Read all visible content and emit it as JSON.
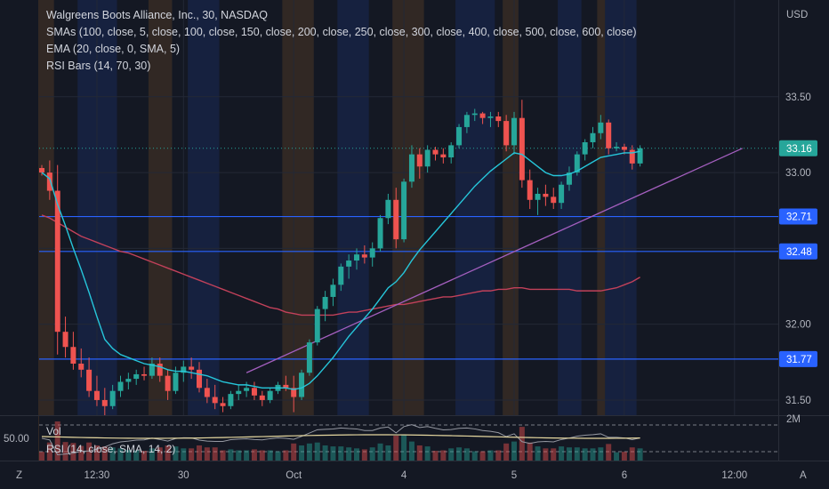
{
  "legend": {
    "title": "Walgreens Boots Alliance, Inc., 30, NASDAQ",
    "smas": "SMAs (100, close, 5, close, 100, close, 150, close, 200, close, 250, close, 300, close, 400, close, 500, close, 600, close)",
    "ema": "EMA (20, close, 0, SMA, 5)",
    "rsi_bars": "RSI Bars (14, 70, 30)"
  },
  "sub_pane": {
    "vol_label": "Vol",
    "rsi_label": "RSI (14, close, SMA, 14, 2)",
    "rsi_left_value": "50.00",
    "vol_axis_label": "2M"
  },
  "price_axis": {
    "currency": "USD",
    "ticks": [
      "33.50",
      "33.00",
      "32.00",
      "31.50"
    ]
  },
  "time_axis": {
    "ticks": [
      "12:30",
      "30",
      "Oct",
      "4",
      "5",
      "6",
      "12:00"
    ]
  },
  "corner_icons": {
    "left": "Z",
    "right": "A"
  },
  "badges": {
    "current_price": "33.16",
    "line_1": "32.71",
    "line_2": "32.48",
    "line_3": "31.77"
  },
  "colors": {
    "up": "#26a69a",
    "down": "#ef5350",
    "ema": "#26c6da",
    "sma": "#c2415a",
    "trend": "#a45fbf",
    "hline": "#2962ff",
    "current": "#26a69a",
    "session_orange": "#f59b2d",
    "session_blue": "#2962ff"
  },
  "chart_data": {
    "type": "candlestick",
    "symbol": "Walgreens Boots Alliance, Inc., 30, NASDAQ",
    "ylim": [
      31.4,
      34.05
    ],
    "horizontal_lines": [
      32.71,
      32.48,
      31.77
    ],
    "current_price": 33.16,
    "x_tick_labels": [
      "12:30",
      "30",
      "Oct",
      "4",
      "5",
      "6",
      "12:00"
    ],
    "x_tick_index": [
      7,
      18,
      32,
      46,
      60,
      74,
      88
    ],
    "candles_ohlc": [
      [
        33.03,
        33.05,
        32.98,
        33.0
      ],
      [
        33.0,
        33.08,
        32.82,
        32.88
      ],
      [
        32.88,
        33.05,
        31.8,
        31.95
      ],
      [
        31.95,
        32.05,
        31.78,
        31.85
      ],
      [
        31.85,
        31.95,
        31.7,
        31.74
      ],
      [
        31.74,
        31.84,
        31.65,
        31.7
      ],
      [
        31.7,
        31.78,
        31.52,
        31.56
      ],
      [
        31.56,
        31.66,
        31.46,
        31.5
      ],
      [
        31.5,
        31.58,
        31.4,
        31.46
      ],
      [
        31.46,
        31.6,
        31.44,
        31.56
      ],
      [
        31.56,
        31.66,
        31.52,
        31.62
      ],
      [
        31.62,
        31.68,
        31.57,
        31.64
      ],
      [
        31.64,
        31.7,
        31.6,
        31.67
      ],
      [
        31.67,
        31.72,
        31.63,
        31.66
      ],
      [
        31.66,
        31.78,
        31.64,
        31.74
      ],
      [
        31.74,
        31.78,
        31.62,
        31.66
      ],
      [
        31.66,
        31.7,
        31.5,
        31.56
      ],
      [
        31.56,
        31.72,
        31.54,
        31.68
      ],
      [
        31.68,
        31.76,
        31.62,
        31.72
      ],
      [
        31.72,
        31.78,
        31.64,
        31.7
      ],
      [
        31.7,
        31.75,
        31.55,
        31.58
      ],
      [
        31.58,
        31.64,
        31.48,
        31.52
      ],
      [
        31.52,
        31.6,
        31.44,
        31.48
      ],
      [
        31.48,
        31.52,
        31.42,
        31.46
      ],
      [
        31.46,
        31.56,
        31.44,
        31.54
      ],
      [
        31.54,
        31.6,
        31.5,
        31.56
      ],
      [
        31.56,
        31.62,
        31.52,
        31.58
      ],
      [
        31.58,
        31.62,
        31.5,
        31.53
      ],
      [
        31.53,
        31.56,
        31.46,
        31.5
      ],
      [
        31.5,
        31.58,
        31.48,
        31.56
      ],
      [
        31.56,
        31.62,
        31.54,
        31.6
      ],
      [
        31.6,
        31.66,
        31.56,
        31.58
      ],
      [
        31.58,
        31.66,
        31.42,
        31.52
      ],
      [
        31.52,
        31.7,
        31.5,
        31.68
      ],
      [
        31.68,
        31.9,
        31.66,
        31.88
      ],
      [
        31.88,
        32.12,
        31.86,
        32.1
      ],
      [
        32.1,
        32.22,
        32.02,
        32.18
      ],
      [
        32.18,
        32.3,
        32.12,
        32.26
      ],
      [
        32.26,
        32.4,
        32.22,
        32.38
      ],
      [
        32.38,
        32.46,
        32.3,
        32.42
      ],
      [
        32.42,
        32.5,
        32.36,
        32.46
      ],
      [
        32.46,
        32.52,
        32.4,
        32.44
      ],
      [
        32.44,
        32.54,
        32.38,
        32.5
      ],
      [
        32.5,
        32.72,
        32.48,
        32.7
      ],
      [
        32.7,
        32.86,
        32.66,
        32.82
      ],
      [
        32.82,
        32.9,
        32.5,
        32.56
      ],
      [
        32.56,
        32.96,
        32.54,
        32.94
      ],
      [
        32.94,
        33.18,
        32.9,
        33.12
      ],
      [
        33.12,
        33.16,
        32.96,
        33.04
      ],
      [
        33.04,
        33.18,
        33.0,
        33.15
      ],
      [
        33.15,
        33.17,
        33.08,
        33.12
      ],
      [
        33.12,
        33.16,
        33.06,
        33.1
      ],
      [
        33.1,
        33.2,
        33.06,
        33.18
      ],
      [
        33.18,
        33.32,
        33.16,
        33.3
      ],
      [
        33.3,
        33.4,
        33.26,
        33.38
      ],
      [
        33.38,
        33.42,
        33.34,
        33.39
      ],
      [
        33.39,
        33.4,
        33.32,
        33.36
      ],
      [
        33.36,
        33.4,
        33.3,
        33.37
      ],
      [
        33.37,
        33.4,
        33.3,
        33.34
      ],
      [
        33.34,
        33.38,
        33.14,
        33.18
      ],
      [
        33.18,
        33.4,
        33.12,
        33.36
      ],
      [
        33.36,
        33.48,
        32.9,
        32.95
      ],
      [
        32.95,
        33.02,
        32.76,
        32.82
      ],
      [
        32.82,
        32.9,
        32.72,
        32.86
      ],
      [
        32.86,
        32.92,
        32.78,
        32.84
      ],
      [
        32.84,
        32.9,
        32.76,
        32.8
      ],
      [
        32.8,
        32.94,
        32.76,
        32.92
      ],
      [
        32.92,
        33.04,
        32.88,
        33.0
      ],
      [
        33.0,
        33.14,
        32.98,
        33.12
      ],
      [
        33.12,
        33.22,
        33.08,
        33.2
      ],
      [
        33.2,
        33.3,
        33.16,
        33.26
      ],
      [
        33.26,
        33.38,
        33.22,
        33.33
      ],
      [
        33.33,
        33.35,
        33.12,
        33.16
      ],
      [
        33.16,
        33.2,
        33.14,
        33.17
      ],
      [
        33.17,
        33.19,
        33.12,
        33.15
      ],
      [
        33.15,
        33.18,
        33.02,
        33.06
      ],
      [
        33.06,
        33.18,
        33.04,
        33.16
      ]
    ],
    "ema_series": [
      33.0,
      32.96,
      32.79,
      32.65,
      32.5,
      32.36,
      32.21,
      32.05,
      31.9,
      31.84,
      31.8,
      31.78,
      31.76,
      31.74,
      31.73,
      31.72,
      31.7,
      31.69,
      31.69,
      31.68,
      31.67,
      31.66,
      31.64,
      31.62,
      31.61,
      31.6,
      31.6,
      31.59,
      31.58,
      31.58,
      31.58,
      31.58,
      31.57,
      31.58,
      31.61,
      31.66,
      31.72,
      31.78,
      31.85,
      31.92,
      31.98,
      32.04,
      32.1,
      32.17,
      32.24,
      32.28,
      32.34,
      32.42,
      32.49,
      32.55,
      32.61,
      32.67,
      32.73,
      32.79,
      32.85,
      32.91,
      32.96,
      33.01,
      33.05,
      33.09,
      33.13,
      33.12,
      33.08,
      33.04,
      33.0,
      32.98,
      32.98,
      32.99,
      33.01,
      33.04,
      33.07,
      33.1,
      33.11,
      33.12,
      33.13,
      33.13,
      33.14
    ],
    "sma_series": [
      32.72,
      32.7,
      32.67,
      32.64,
      32.61,
      32.58,
      32.56,
      32.54,
      32.52,
      32.5,
      32.48,
      32.47,
      32.45,
      32.43,
      32.41,
      32.39,
      32.37,
      32.35,
      32.33,
      32.31,
      32.29,
      32.27,
      32.25,
      32.23,
      32.21,
      32.19,
      32.17,
      32.15,
      32.13,
      32.11,
      32.1,
      32.08,
      32.07,
      32.06,
      32.06,
      32.06,
      32.06,
      32.06,
      32.07,
      32.08,
      32.08,
      32.09,
      32.1,
      32.11,
      32.12,
      32.13,
      32.13,
      32.14,
      32.15,
      32.16,
      32.17,
      32.18,
      32.18,
      32.19,
      32.2,
      32.21,
      32.22,
      32.22,
      32.23,
      32.23,
      32.24,
      32.24,
      32.23,
      32.23,
      32.23,
      32.23,
      32.23,
      32.23,
      32.22,
      32.22,
      32.22,
      32.22,
      32.23,
      32.24,
      32.26,
      32.28,
      32.31
    ],
    "trendline": [
      [
        26,
        31.68
      ],
      [
        89,
        33.16
      ]
    ]
  }
}
